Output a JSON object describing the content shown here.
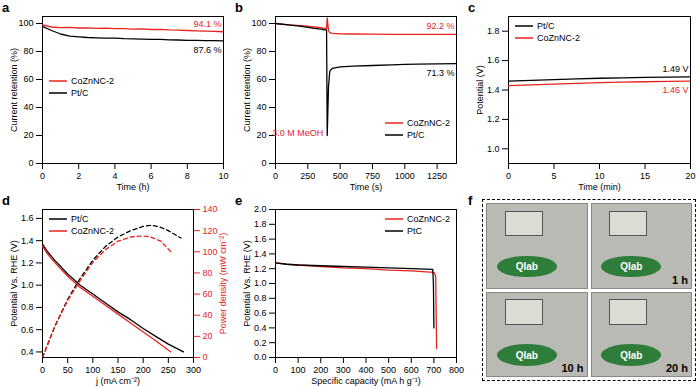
{
  "chart_data": [
    {
      "type": "line",
      "panel": "a",
      "xlabel": "Time (h)",
      "ylabel": "Current retention (%)",
      "xlim": [
        0,
        10
      ],
      "xticks": [
        0,
        2,
        4,
        6,
        8,
        10
      ],
      "ylim": [
        0,
        105
      ],
      "yticks": [
        0,
        20,
        40,
        60,
        80,
        100
      ],
      "grid": false,
      "legend": "center left",
      "x": [
        0,
        0.5,
        1,
        1.5,
        2,
        2.5,
        3,
        3.5,
        4,
        4.5,
        5,
        5.5,
        6,
        6.5,
        7,
        7.5,
        8,
        8.5,
        9,
        9.5,
        10
      ],
      "series": [
        {
          "name": "CoZnNC-2",
          "color": "#e8231f",
          "end_label": "94.1 %",
          "values": [
            99,
            97.5,
            97,
            97.2,
            96.8,
            96.9,
            96.5,
            96.7,
            96.3,
            96.4,
            96,
            96.1,
            95.7,
            95.8,
            95.4,
            95.2,
            95,
            94.8,
            94.6,
            94.4,
            94.1
          ]
        },
        {
          "name": "Pt/C",
          "color": "#000000",
          "end_label": "87.6 %",
          "values": [
            98,
            95,
            92.5,
            91,
            90.5,
            90,
            89.8,
            89.5,
            89.6,
            89.2,
            89,
            88.9,
            88.6,
            88.7,
            88.3,
            88.2,
            88,
            87.9,
            87.8,
            87.7,
            87.6
          ]
        }
      ]
    },
    {
      "type": "line",
      "panel": "b",
      "xlabel": "Time (s)",
      "ylabel": "Current retention (%)",
      "xlim": [
        0,
        1400
      ],
      "xticks": [
        0,
        250,
        500,
        750,
        1000,
        1250
      ],
      "ylim": [
        0,
        105
      ],
      "yticks": [
        0,
        20,
        40,
        60,
        80,
        100
      ],
      "grid": false,
      "legend": "lower right",
      "x": [
        0,
        100,
        200,
        300,
        350,
        380,
        395,
        400,
        410,
        420,
        440,
        500,
        600,
        750,
        900,
        1000,
        1100,
        1250,
        1400
      ],
      "series": [
        {
          "name": "CoZnNC-2",
          "color": "#e8231f",
          "end_label": "92.2 %",
          "values": [
            100,
            99,
            98.5,
            97.5,
            97,
            96.5,
            96.5,
            104,
            95,
            93.5,
            93,
            92.6,
            92.5,
            92.4,
            92.3,
            92.3,
            92.2,
            92.2,
            92.2
          ]
        },
        {
          "name": "Pt/C",
          "color": "#000000",
          "end_label": "71.3 %",
          "values": [
            100,
            99,
            98,
            96.5,
            96,
            95.5,
            95.5,
            20,
            55,
            66,
            68,
            69,
            69.5,
            70,
            70.5,
            70.8,
            71,
            71.2,
            71.3
          ]
        }
      ],
      "annotations": [
        {
          "text": "3.0 M MeOH",
          "x": 400
        }
      ]
    },
    {
      "type": "line",
      "panel": "c",
      "xlabel": "Time (min)",
      "ylabel": "Potential (V)",
      "xlim": [
        0,
        20
      ],
      "xticks": [
        0,
        5,
        10,
        15,
        20
      ],
      "ylim": [
        0.9,
        1.9
      ],
      "yticks": [
        {
          "value": 1,
          "label": "1.0"
        },
        1.2,
        1.4,
        1.6,
        1.8
      ],
      "grid": false,
      "legend": "upper left",
      "x": [
        0,
        2.5,
        5,
        7.5,
        10,
        12.5,
        15,
        17.5,
        20
      ],
      "series": [
        {
          "name": "Pt/C",
          "color": "#000000",
          "end_label": "1.49 V",
          "values": [
            1.46,
            1.465,
            1.47,
            1.475,
            1.48,
            1.483,
            1.486,
            1.488,
            1.49
          ]
        },
        {
          "name": "CoZnNC-2",
          "color": "#e8231f",
          "end_label": "1.46 V",
          "values": [
            1.43,
            1.435,
            1.44,
            1.445,
            1.45,
            1.453,
            1.456,
            1.458,
            1.46
          ]
        }
      ]
    },
    {
      "type": "line",
      "panel": "d",
      "xlabel": "j (mA cm⁻²)",
      "ylabel": "Potential Vs. RHE (V)",
      "y2label": "Power density (mW cm⁻²)",
      "xlim": [
        0,
        300
      ],
      "xticks": [
        0,
        50,
        100,
        150,
        200,
        250,
        300
      ],
      "ylim": [
        0.35,
        1.68
      ],
      "yticks": [
        0.4,
        0.6,
        0.8,
        {
          "value": 1,
          "label": "1.0"
        },
        1.2,
        1.4,
        1.6
      ],
      "y2lim": [
        0,
        140
      ],
      "y2ticks": [
        0,
        20,
        40,
        60,
        80,
        100,
        120,
        140
      ],
      "grid": false,
      "legend": "upper left",
      "series": [
        {
          "name": "Pt/C",
          "color": "#000000",
          "line_style": "solid",
          "x": [
            0,
            10,
            25,
            50,
            75,
            100,
            125,
            150,
            175,
            200,
            225,
            250,
            280
          ],
          "values": [
            1.37,
            1.3,
            1.22,
            1.1,
            1.0,
            0.92,
            0.84,
            0.76,
            0.69,
            0.61,
            0.54,
            0.47,
            0.4
          ]
        },
        {
          "name": "CoZnNC-2",
          "color": "#e8231f",
          "line_style": "solid",
          "x": [
            0,
            10,
            25,
            50,
            75,
            100,
            125,
            150,
            175,
            200,
            225,
            255
          ],
          "values": [
            1.35,
            1.28,
            1.2,
            1.08,
            0.98,
            0.9,
            0.82,
            0.74,
            0.66,
            0.58,
            0.5,
            0.4
          ]
        },
        {
          "name": "Pt/C",
          "color": "#000000",
          "line_style": "dashed",
          "axis": "y2",
          "x": [
            0,
            25,
            50,
            75,
            100,
            125,
            150,
            175,
            200,
            215,
            230,
            250,
            275
          ],
          "values": [
            0,
            30,
            55,
            75,
            92,
            105,
            114,
            120,
            124,
            125,
            124,
            120,
            113
          ]
        },
        {
          "name": "CoZnNC-2",
          "color": "#e8231f",
          "line_style": "dashed",
          "axis": "y2",
          "x": [
            0,
            25,
            50,
            75,
            100,
            125,
            150,
            175,
            200,
            215,
            235,
            255
          ],
          "values": [
            0,
            30,
            54,
            73,
            90,
            102,
            110,
            114,
            115,
            114,
            110,
            100
          ]
        }
      ]
    },
    {
      "type": "line",
      "panel": "e",
      "xlabel": "Specific capacity (mA h g⁻¹)",
      "ylabel": "Potential Vs. RHE (V)",
      "xlim": [
        0,
        800
      ],
      "xticks": [
        0,
        100,
        200,
        300,
        400,
        500,
        600,
        700,
        800
      ],
      "ylim": [
        0,
        2
      ],
      "yticks": [
        {
          "value": 0,
          "label": "0.0"
        },
        0.2,
        0.4,
        0.6,
        0.8,
        {
          "value": 1,
          "label": "1.0"
        },
        1.2,
        1.4,
        1.6,
        1.8,
        {
          "value": 2,
          "label": "2.0"
        }
      ],
      "grid": false,
      "legend": "upper right",
      "series": [
        {
          "name": "CoZnNC-2",
          "color": "#e8231f",
          "x": [
            0,
            50,
            100,
            200,
            300,
            400,
            500,
            600,
            700,
            708,
            712
          ],
          "values": [
            1.28,
            1.26,
            1.25,
            1.23,
            1.21,
            1.2,
            1.18,
            1.17,
            1.15,
            1.1,
            0.12
          ]
        },
        {
          "name": "PtC",
          "color": "#000000",
          "x": [
            0,
            50,
            100,
            200,
            300,
            400,
            500,
            600,
            695,
            698,
            700
          ],
          "values": [
            1.28,
            1.26,
            1.25,
            1.24,
            1.23,
            1.22,
            1.21,
            1.2,
            1.19,
            1.0,
            0.4
          ]
        }
      ]
    },
    {
      "type": "photo",
      "panel": "f",
      "logo": "Qlab",
      "labels": [
        "1 h",
        "10 h",
        "20 h"
      ]
    }
  ]
}
